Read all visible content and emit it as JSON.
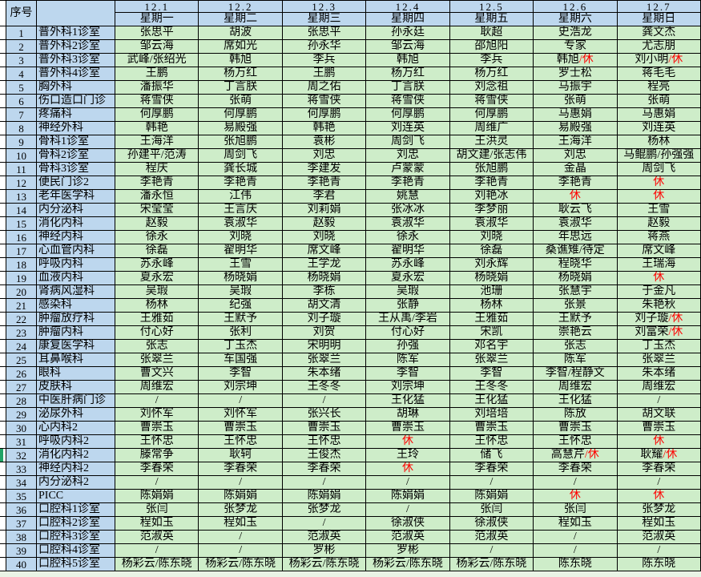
{
  "sheet": {
    "corner_label": "序号",
    "dept_header": "",
    "rest_char": "休",
    "empty_char": "/",
    "colors": {
      "header_blue": "#BDD7EE",
      "cell_green": "#CEEDC9",
      "rest_red": "#FF0000",
      "flag_green": "#21A366",
      "grid_line": "#000000"
    },
    "days": [
      {
        "date": "12.1",
        "week": "星期一"
      },
      {
        "date": "12.2",
        "week": "星期二"
      },
      {
        "date": "12.3",
        "week": "星期三"
      },
      {
        "date": "12.4",
        "week": "星期四"
      },
      {
        "date": "12.5",
        "week": "星期五"
      },
      {
        "date": "12.6",
        "week": "星期六"
      },
      {
        "date": "12.7",
        "week": "星期日"
      }
    ],
    "marked_row_no": "32",
    "rows": [
      {
        "no": "1",
        "dept": "普外科1诊室",
        "cells": [
          "张思平",
          "胡波",
          "张思平",
          "孙永廷",
          "耿超",
          "史浩龙",
          "龚文杰"
        ]
      },
      {
        "no": "2",
        "dept": "普外科2诊室",
        "cells": [
          "邹云海",
          "席如光",
          "孙永华",
          "邹云海",
          "邵旭阳",
          "专家",
          "尤志朋"
        ]
      },
      {
        "no": "3",
        "dept": "普外科3诊室",
        "cells": [
          "武峰/张绍光",
          "韩旭",
          "李兵",
          "韩旭",
          "李兵",
          "韩旭/休",
          "刘小明/休"
        ]
      },
      {
        "no": "4",
        "dept": "普外科4诊室",
        "cells": [
          "王鹏",
          "杨万红",
          "王鹏",
          "杨万红",
          "杨万红",
          "罗士松",
          "蒋毛毛"
        ]
      },
      {
        "no": "5",
        "dept": "胸外科",
        "cells": [
          "潘振华",
          "丁言朕",
          "周之佑",
          "丁言朕",
          "刘念祖",
          "马振宇",
          "程亮"
        ]
      },
      {
        "no": "6",
        "dept": "伤口造口门诊",
        "cells": [
          "蒋雪侠",
          "张萌",
          "蒋雪侠",
          "蒋雪侠",
          "蒋雪侠",
          "张萌",
          "张萌"
        ]
      },
      {
        "no": "7",
        "dept": "疼痛科",
        "cells": [
          "何厚鹏",
          "何厚鹏",
          "何厚鹏",
          "何厚鹏",
          "何厚鹏",
          "马惠娟",
          "马惠娟"
        ]
      },
      {
        "no": "8",
        "dept": "神经外科",
        "cells": [
          "韩艳",
          "易殿强",
          "韩艳",
          "刘连英",
          "周维广",
          "易殿强",
          "刘连英"
        ]
      },
      {
        "no": "9",
        "dept": "骨科1诊室",
        "cells": [
          "王海洋",
          "张旭鹏",
          "袁彬",
          "周剑飞",
          "王洪灵",
          "王海洋",
          "杨林"
        ]
      },
      {
        "no": "10",
        "dept": "骨科2诊室",
        "cells": [
          "孙建平/范涛",
          "周剑飞",
          "刘忠",
          "刘忠",
          "胡文建/张志伟",
          "刘忠",
          "马鲲鹏/孙强强"
        ]
      },
      {
        "no": "11",
        "dept": "骨科3诊室",
        "cells": [
          "程庆",
          "龚长城",
          "李建发",
          "卢蒙蒙",
          "张旭鹏",
          "金晶",
          "周剑飞"
        ]
      },
      {
        "no": "12",
        "dept": "便民门诊2",
        "cells": [
          "李艳青",
          "李艳青",
          "李艳青",
          "李艳青",
          "李艳青",
          "李艳青",
          "休"
        ]
      },
      {
        "no": "13",
        "dept": "老年医学科",
        "cells": [
          "潘永恒",
          "江伟",
          "李君",
          "姚慧",
          "刘艳冰",
          "休",
          "休"
        ]
      },
      {
        "no": "14",
        "dept": "内分泌科",
        "cells": [
          "宋莹莹",
          "王言庆",
          "刘莉娟",
          "张冰冰",
          "李梦丽",
          "耿云飞",
          "王雪"
        ]
      },
      {
        "no": "15",
        "dept": "消化内科",
        "cells": [
          "赵毅",
          "袁淑华",
          "赵毅",
          "袁淑华",
          "袁淑华",
          "袁淑华",
          "赵毅"
        ]
      },
      {
        "no": "16",
        "dept": "神经内科",
        "cells": [
          "徐永",
          "刘晓",
          "刘晓",
          "徐永",
          "刘晓",
          "年思远",
          "蒋燕"
        ]
      },
      {
        "no": "17",
        "dept": "心血管内科",
        "cells": [
          "徐磊",
          "翟明华",
          "席文峰",
          "翟明华",
          "徐磊",
          "桑谯雉/待定",
          "席文峰"
        ]
      },
      {
        "no": "18",
        "dept": "呼吸内科",
        "cells": [
          "苏永峰",
          "王雪",
          "王学龙",
          "苏永峰",
          "刘永辉",
          "程晓华",
          "王瑞海"
        ]
      },
      {
        "no": "19",
        "dept": "血液内科",
        "cells": [
          "夏永宏",
          "杨晓娟",
          "杨晓娟",
          "夏永宏",
          "杨晓娟",
          "杨晓娟",
          "休"
        ]
      },
      {
        "no": "20",
        "dept": "肾病风湿科",
        "cells": [
          "吴瑕",
          "吴瑕",
          "李栋",
          "吴瑕",
          "池珊",
          "张慧宇",
          "于金凡"
        ]
      },
      {
        "no": "21",
        "dept": "感染科",
        "cells": [
          "杨林",
          "纪强",
          "胡文清",
          "张静",
          "杨林",
          "张景",
          "朱艳秋"
        ]
      },
      {
        "no": "22",
        "dept": "肿瘤放疗科",
        "cells": [
          "王雅茹",
          "王默予",
          "刘子璇",
          "王从禹/李岩",
          "王雅茹",
          "王默予",
          "刘子璇/休"
        ]
      },
      {
        "no": "23",
        "dept": "肿瘤内科",
        "cells": [
          "付心好",
          "张利",
          "刘贺",
          "付心好",
          "宋凯",
          "崇艳云",
          "刘富荣/休"
        ]
      },
      {
        "no": "24",
        "dept": "康复医学科",
        "cells": [
          "张志",
          "丁玉杰",
          "宋明明",
          "孙强",
          "邓名宇",
          "张志",
          "丁玉杰"
        ]
      },
      {
        "no": "25",
        "dept": "耳鼻喉科",
        "cells": [
          "张翠兰",
          "车国强",
          "张翠兰",
          "陈军",
          "张翠兰",
          "陈军",
          "张翠兰"
        ]
      },
      {
        "no": "26",
        "dept": "眼科",
        "cells": [
          "曹文兴",
          "李智",
          "朱本绪",
          "李智",
          "李智",
          "李智/程静文",
          "朱本绪"
        ]
      },
      {
        "no": "27",
        "dept": "皮肤科",
        "cells": [
          "周维宏",
          "刘宗坤",
          "王冬冬",
          "刘宗坤",
          "王冬冬",
          "周维宏",
          "周维宏"
        ]
      },
      {
        "no": "28",
        "dept": "中医肝病门诊",
        "cells": [
          "/",
          "/",
          "/",
          "王化猛",
          "王化猛",
          "王化猛",
          "/"
        ]
      },
      {
        "no": "29",
        "dept": "泌尿外科",
        "cells": [
          "刘怀军",
          "刘怀军",
          "张兴长",
          "胡琳",
          "刘培培",
          "陈放",
          "胡文联"
        ]
      },
      {
        "no": "30",
        "dept": "心内科2",
        "cells": [
          "曹崇玉",
          "曹崇玉",
          "曹崇玉",
          "曹崇玉",
          "曹崇玉",
          "曹崇玉",
          "曹崇玉"
        ]
      },
      {
        "no": "31",
        "dept": "呼吸内科2",
        "cells": [
          "王怀忠",
          "王怀忠",
          "王怀忠",
          "休",
          "王怀忠",
          "王怀忠",
          "休"
        ]
      },
      {
        "no": "32",
        "dept": "消化内科2",
        "cells": [
          "滕常争",
          "耿轲",
          "王俊杰",
          "王玲",
          "储飞",
          "高慧芹/休",
          "耿耀/休"
        ]
      },
      {
        "no": "33",
        "dept": "神经内科2",
        "cells": [
          "李春荣",
          "李春荣",
          "李春荣",
          "休",
          "李春荣",
          "李春荣",
          "李春荣"
        ]
      },
      {
        "no": "34",
        "dept": "内分泌科2",
        "cells": [
          "/",
          "/",
          "/",
          "/",
          "/",
          "/",
          "/"
        ]
      },
      {
        "no": "35",
        "dept": "PICC",
        "cells": [
          "陈娟娟",
          "陈娟娟",
          "陈娟娟",
          "陈娟娟",
          "陈娟娟",
          "休",
          "休"
        ]
      },
      {
        "no": "36",
        "dept": "口腔科1诊室",
        "cells": [
          "张闫",
          "张梦龙",
          "张梦龙",
          "/",
          "张闫",
          "张闫",
          "张梦龙"
        ]
      },
      {
        "no": "37",
        "dept": "口腔科2诊室",
        "cells": [
          "程如玉",
          "程如玉",
          "/",
          "徐淑侠",
          "徐淑侠",
          "程如玉",
          "程如玉"
        ]
      },
      {
        "no": "38",
        "dept": "口腔科3诊室",
        "cells": [
          "范淑英",
          "/",
          "范淑英",
          "范淑英",
          "范淑英",
          "/",
          "范淑英"
        ]
      },
      {
        "no": "39",
        "dept": "口腔科4诊室",
        "cells": [
          "/",
          "/",
          "罗彬",
          "罗彬",
          "/",
          "/",
          "/"
        ]
      },
      {
        "no": "40",
        "dept": "口腔科5诊室",
        "cells": [
          "杨彩云/陈东晓",
          "杨彩云/陈东晓",
          "杨彩云/陈东晓",
          "杨彩云/陈东晓",
          "杨彩云/陈东晓",
          "陈东晓",
          "陈东晓"
        ]
      }
    ]
  }
}
